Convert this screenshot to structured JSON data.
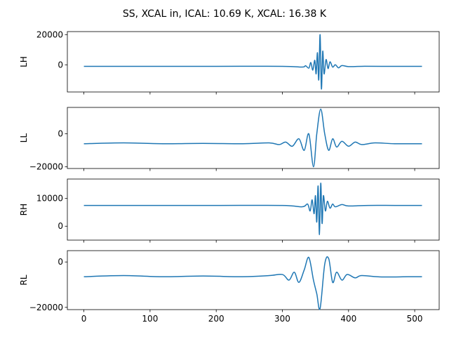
{
  "chart_data": {
    "type": "line",
    "title": "SS, XCAL in, ICAL: 10.69 K, XCAL: 16.38 K",
    "shared_x": true,
    "xlim": [
      -25,
      537
    ],
    "xticks": [
      0,
      100,
      200,
      300,
      400,
      500
    ],
    "line_color": "#1f77b4",
    "panels": [
      {
        "name": "LH",
        "ylabel": "LH",
        "ylim": [
          -18000,
          22000
        ],
        "yticks": [
          0,
          20000
        ],
        "ytick_labels": [
          "0",
          "20000"
        ],
        "x": [
          0,
          100,
          200,
          300,
          330,
          335,
          340,
          343,
          346,
          349,
          351,
          353,
          355,
          357,
          359,
          361,
          363,
          366,
          369,
          372,
          376,
          380,
          385,
          390,
          400,
          420,
          450,
          511
        ],
        "y": [
          -1000,
          -1000,
          -1000,
          -1000,
          -1500,
          -600,
          -2200,
          1500,
          -3500,
          3000,
          -6000,
          8000,
          -10000,
          20000,
          -16000,
          9000,
          -6000,
          3500,
          -2500,
          2000,
          -1500,
          0,
          -2000,
          -500,
          -1200,
          -1000,
          -1000,
          -1000
        ]
      },
      {
        "name": "LL",
        "ylabel": "LL",
        "ylim": [
          -21000,
          16000
        ],
        "yticks": [
          -20000,
          0
        ],
        "ytick_labels": [
          "−20000",
          "0"
        ],
        "x": [
          0,
          60,
          120,
          180,
          240,
          280,
          295,
          305,
          315,
          325,
          333,
          340,
          347,
          352,
          358,
          364,
          370,
          376,
          382,
          390,
          400,
          410,
          420,
          440,
          470,
          511
        ],
        "y": [
          -6000,
          -5500,
          -6000,
          -5800,
          -6000,
          -5500,
          -6500,
          -5000,
          -7500,
          -3000,
          -10000,
          0,
          -20000,
          0,
          15000,
          0,
          -10000,
          -3000,
          -8000,
          -4500,
          -7500,
          -5000,
          -6500,
          -5500,
          -6000,
          -6000
        ]
      },
      {
        "name": "RH",
        "ylabel": "RH",
        "ylim": [
          -5000,
          17000
        ],
        "yticks": [
          0,
          10000
        ],
        "ytick_labels": [
          "0",
          "10000"
        ],
        "x": [
          0,
          100,
          200,
          300,
          330,
          338,
          342,
          345,
          348,
          350,
          352,
          354,
          356,
          358,
          360,
          362,
          365,
          368,
          372,
          376,
          380,
          390,
          400,
          430,
          470,
          511
        ],
        "y": [
          7500,
          7500,
          7500,
          7500,
          7000,
          8000,
          5500,
          9500,
          4500,
          11000,
          1500,
          14500,
          -3000,
          15500,
          1000,
          11000,
          5500,
          9000,
          6500,
          8000,
          7000,
          7800,
          7300,
          7500,
          7500,
          7500
        ]
      },
      {
        "name": "RL",
        "ylabel": "RL",
        "ylim": [
          -21000,
          5000
        ],
        "yticks": [
          -20000,
          0
        ],
        "ytick_labels": [
          "−20000",
          "0"
        ],
        "x": [
          0,
          60,
          120,
          180,
          240,
          280,
          300,
          310,
          318,
          325,
          333,
          340,
          347,
          352,
          357,
          364,
          370,
          376,
          382,
          390,
          398,
          410,
          420,
          450,
          490,
          511
        ],
        "y": [
          -6500,
          -6000,
          -6500,
          -6200,
          -6500,
          -6000,
          -5500,
          -8000,
          -4500,
          -9000,
          -3500,
          2000,
          -8000,
          -14000,
          -20500,
          -1000,
          1500,
          -9000,
          -4500,
          -8000,
          -5500,
          -7000,
          -6000,
          -6600,
          -6500,
          -6500
        ]
      }
    ]
  }
}
